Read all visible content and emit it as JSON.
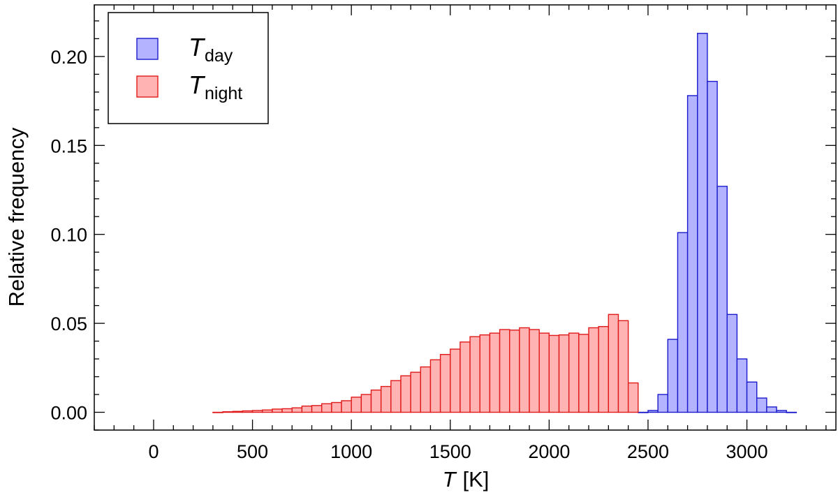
{
  "chart_data": {
    "type": "bar",
    "histogram": true,
    "xlabel": {
      "symbol": "T",
      "unit": "[K]"
    },
    "ylabel": "Relative frequency",
    "xlim": [
      -300,
      3450
    ],
    "ylim": [
      -0.01,
      0.229
    ],
    "x_ticks": [
      0,
      500,
      1000,
      1500,
      2000,
      2500,
      3000
    ],
    "x_tick_labels": [
      "0",
      "500",
      "1000",
      "1500",
      "2000",
      "2500",
      "3000"
    ],
    "y_ticks": [
      0.0,
      0.05,
      0.1,
      0.15,
      0.2
    ],
    "y_tick_labels": [
      "0.00",
      "0.05",
      "0.10",
      "0.15",
      "0.20"
    ],
    "x_minor_step": 100,
    "y_minor_step": 0.01,
    "bin_width": 50,
    "legend": {
      "placement": "top-left"
    },
    "series": [
      {
        "name": "T_day",
        "label_main": "T",
        "label_sub": "day",
        "fill": "#b3b3ff",
        "stroke": "#1a1acc",
        "bin_start": 2450,
        "values": [
          0.0,
          0.001,
          0.01,
          0.041,
          0.101,
          0.178,
          0.213,
          0.186,
          0.127,
          0.055,
          0.03,
          0.017,
          0.008,
          0.003,
          0.001,
          0.0
        ]
      },
      {
        "name": "T_night",
        "label_main": "T",
        "label_sub": "night",
        "fill": "#ffb3b3",
        "stroke": "#e01a1a",
        "bin_start": 300,
        "values": [
          0.0,
          0.0003,
          0.0005,
          0.0008,
          0.001,
          0.0013,
          0.0018,
          0.002,
          0.0025,
          0.0035,
          0.0038,
          0.0048,
          0.0055,
          0.0065,
          0.0085,
          0.01,
          0.0125,
          0.0145,
          0.0178,
          0.0205,
          0.0225,
          0.0255,
          0.0295,
          0.0325,
          0.0355,
          0.0395,
          0.0425,
          0.0435,
          0.0445,
          0.0465,
          0.0462,
          0.0475,
          0.0465,
          0.0445,
          0.0432,
          0.0435,
          0.0445,
          0.0438,
          0.0475,
          0.0482,
          0.055,
          0.0515,
          0.0165
        ]
      }
    ]
  }
}
